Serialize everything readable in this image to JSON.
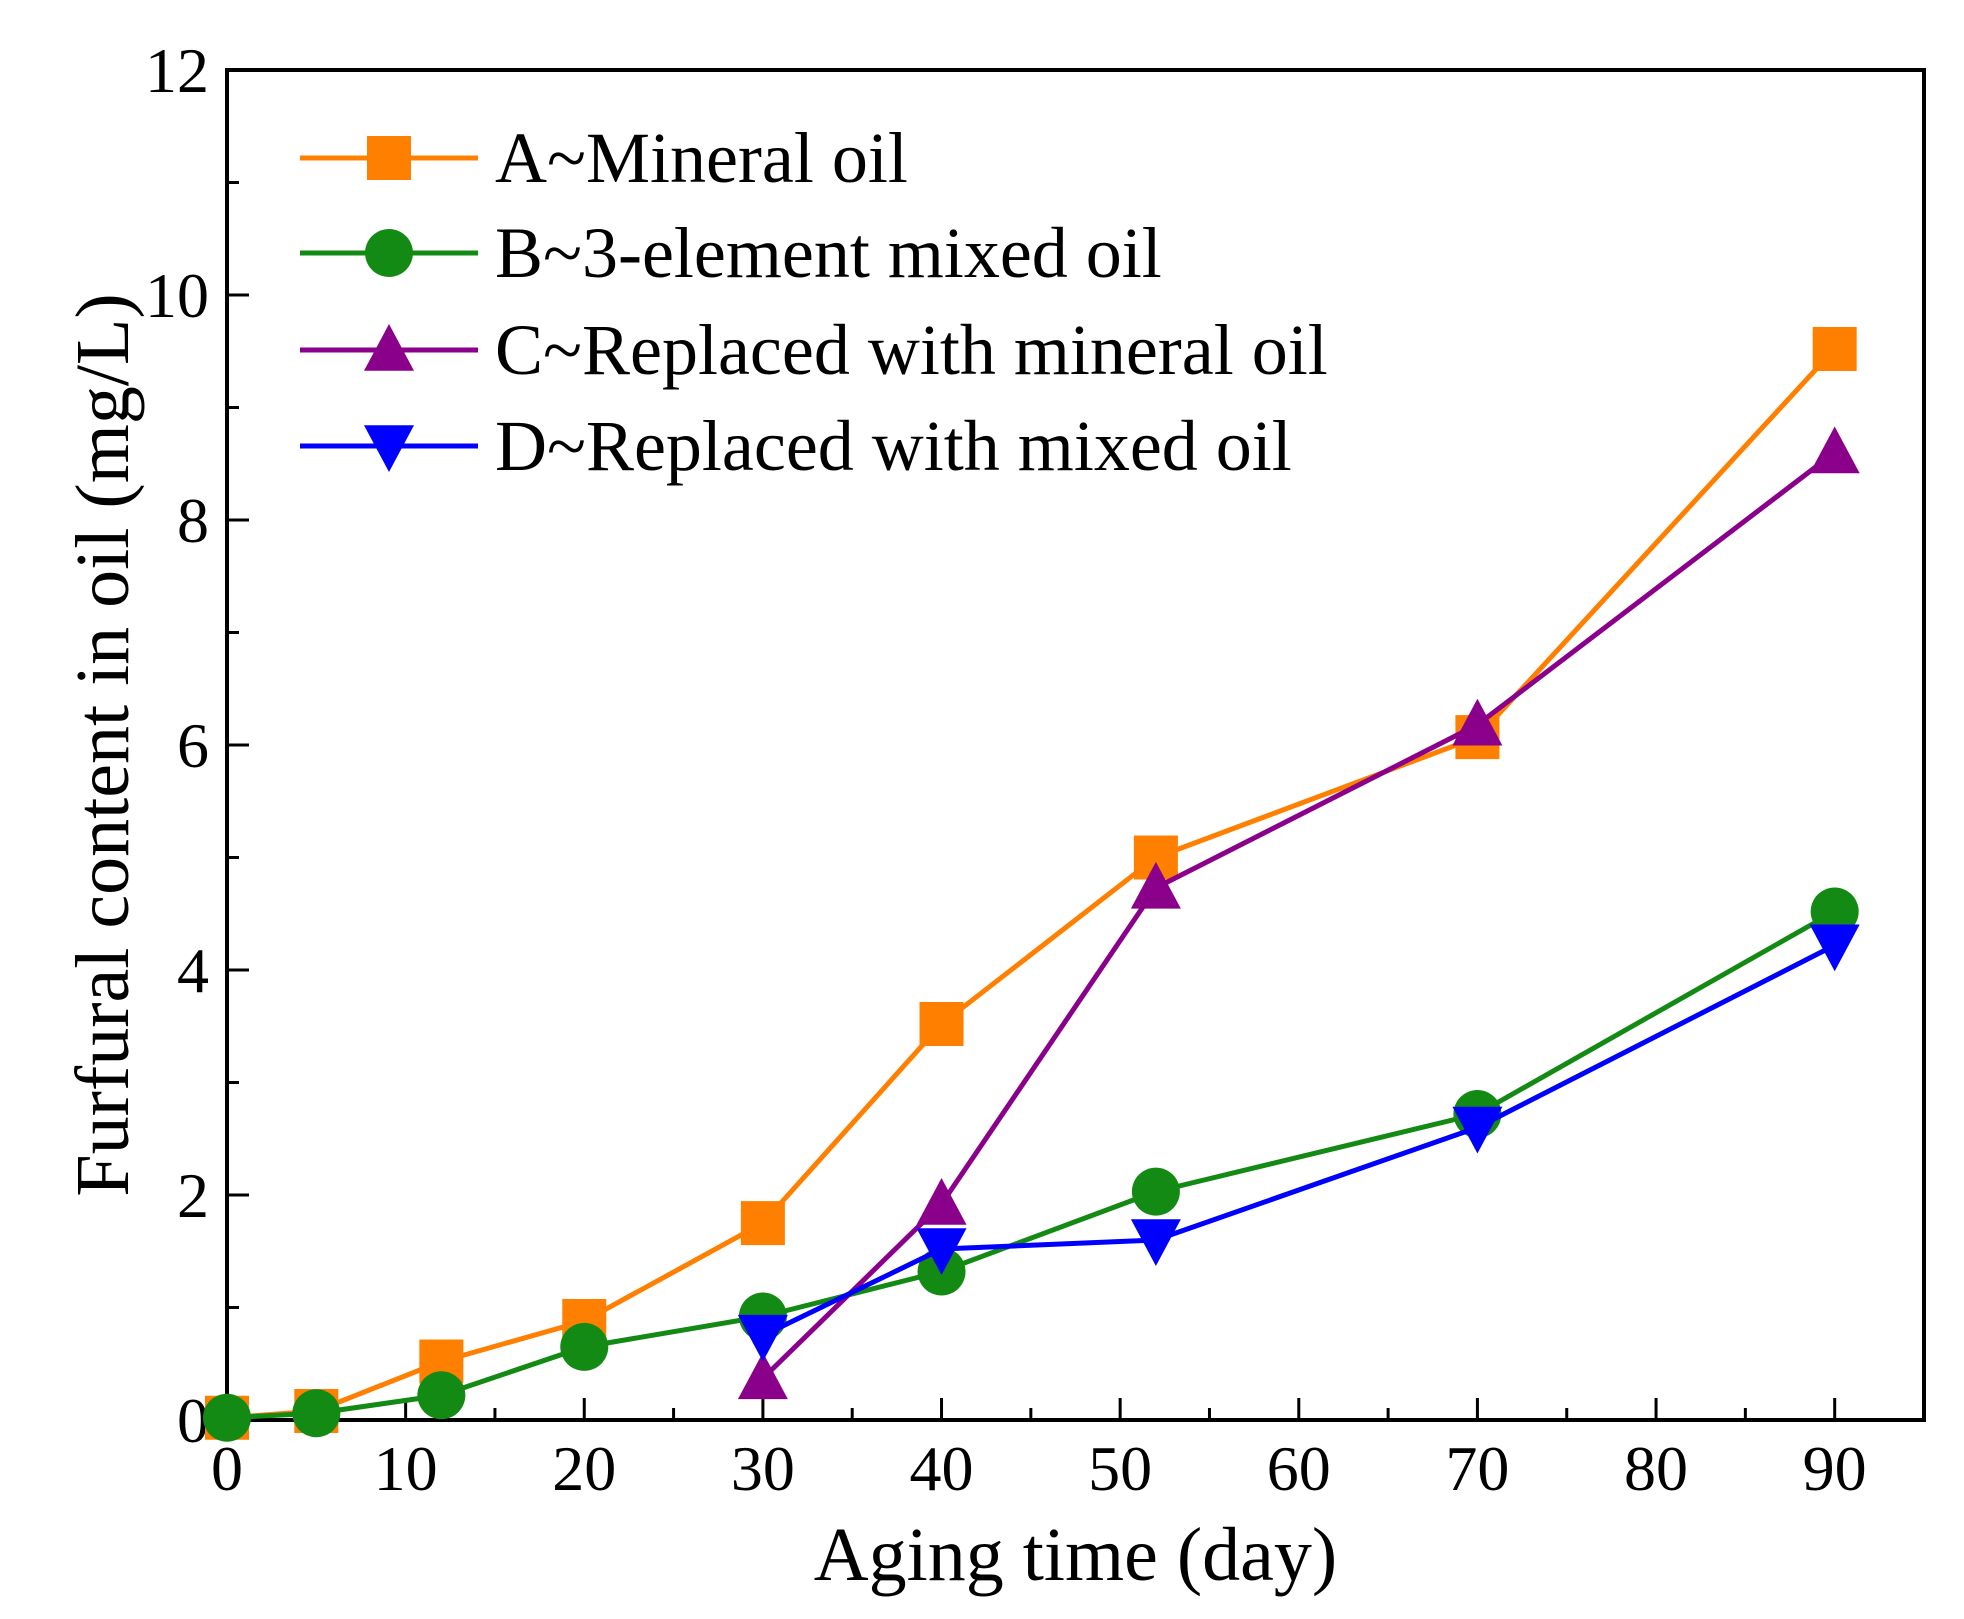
{
  "chart_data": {
    "type": "line",
    "title": "",
    "xlabel": "Aging time (day)",
    "ylabel": "Furfural content in oil (mg/L)",
    "xlim": [
      0,
      95
    ],
    "ylim": [
      0,
      12
    ],
    "xticks": [
      0,
      10,
      20,
      30,
      40,
      50,
      60,
      70,
      80,
      90
    ],
    "xtick_labels": [
      "0",
      "10",
      "20",
      "30",
      "40",
      "50",
      "60",
      "70",
      "80",
      "90"
    ],
    "yticks": [
      0,
      2,
      4,
      6,
      8,
      10,
      12
    ],
    "ytick_labels": [
      "0",
      "2",
      "4",
      "6",
      "8",
      "10",
      "12"
    ],
    "grid": false,
    "legend_position": "top-left",
    "series": [
      {
        "name": "A~Mineral oil",
        "color": "#ff8000",
        "marker": "square",
        "x": [
          0,
          5,
          12,
          20,
          30,
          40,
          52,
          70,
          90
        ],
        "y": [
          0.02,
          0.08,
          0.52,
          0.88,
          1.75,
          3.52,
          5.0,
          6.07,
          9.52
        ]
      },
      {
        "name": "B~3-element mixed oil",
        "color": "#138a13",
        "marker": "circle",
        "x": [
          0,
          5,
          12,
          20,
          30,
          40,
          52,
          70,
          90
        ],
        "y": [
          0.02,
          0.06,
          0.22,
          0.65,
          0.92,
          1.32,
          2.03,
          2.72,
          4.52
        ]
      },
      {
        "name": "C~Replaced with mineral oil",
        "color": "#8b008b",
        "marker": "triangle-up",
        "x": [
          30,
          40,
          52,
          70,
          90
        ],
        "y": [
          0.37,
          1.92,
          4.73,
          6.18,
          8.6
        ]
      },
      {
        "name": "D~Replaced with mixed oil",
        "color": "#0000ff",
        "marker": "triangle-down",
        "x": [
          30,
          40,
          52,
          70,
          90
        ],
        "y": [
          0.75,
          1.52,
          1.6,
          2.6,
          4.22
        ]
      }
    ]
  }
}
